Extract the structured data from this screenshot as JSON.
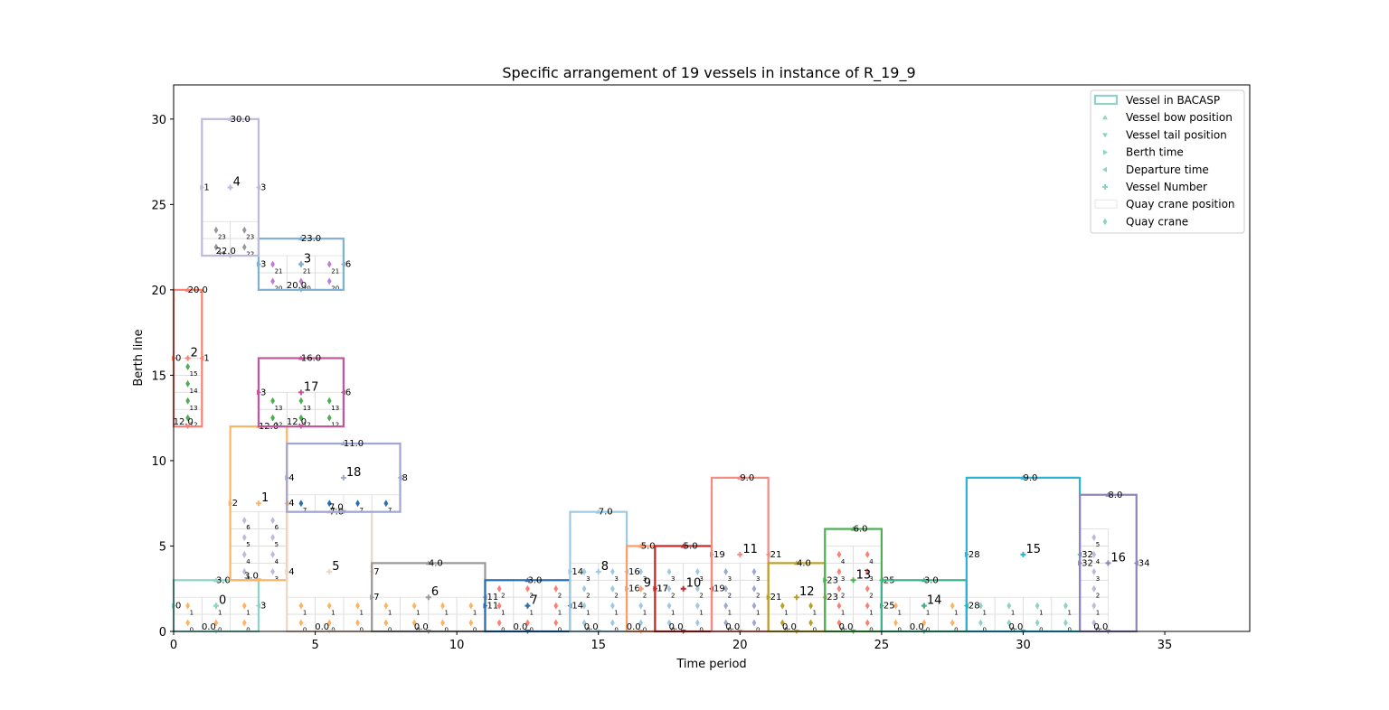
{
  "chart_data": {
    "type": "berth-allocation",
    "title": "Specific arrangement of 19 vessels in instance of R_19_9",
    "xlabel": "Time period",
    "ylabel": "Berth line",
    "xlim": [
      0,
      38
    ],
    "ylim": [
      0,
      32
    ],
    "xticks": [
      0,
      5,
      10,
      15,
      20,
      25,
      30,
      35
    ],
    "yticks": [
      0,
      5,
      10,
      15,
      20,
      25,
      30
    ],
    "legend_position": "upper-right",
    "legend": [
      {
        "label": "Vessel in BACASP",
        "marker": "rect"
      },
      {
        "label": "Vessel bow position",
        "marker": "triangle-up"
      },
      {
        "label": "Vessel tail position",
        "marker": "triangle-down"
      },
      {
        "label": "Berth time",
        "marker": "triangle-right"
      },
      {
        "label": "Departure time",
        "marker": "triangle-left"
      },
      {
        "label": "Vessel Number",
        "marker": "plus"
      },
      {
        "label": "Quay crane position",
        "marker": "grid"
      },
      {
        "label": "Quay crane",
        "marker": "diamond"
      }
    ],
    "vessels": [
      {
        "id": "0",
        "t1": 0,
        "t2": 3,
        "b1": 0,
        "b2": 3,
        "color": "#8dd3c7",
        "bow": "3.0",
        "tail": "0.0",
        "start": "0",
        "end": "3"
      },
      {
        "id": "1",
        "t1": 2,
        "t2": 4,
        "b1": 3,
        "b2": 12,
        "color": "#fdb462",
        "bow": "12.0",
        "tail": "3.0",
        "start": "2",
        "end": "4"
      },
      {
        "id": "2",
        "t1": 0,
        "t2": 1,
        "b1": 12,
        "b2": 20,
        "color": "#fb8072",
        "bow": "20.0",
        "tail": "12.0",
        "start": "0",
        "end": "1"
      },
      {
        "id": "3",
        "t1": 3,
        "t2": 6,
        "b1": 20,
        "b2": 23,
        "color": "#80b1d3",
        "bow": "23.0",
        "tail": "20.0",
        "start": "3",
        "end": "6"
      },
      {
        "id": "4",
        "t1": 1,
        "t2": 3,
        "b1": 22,
        "b2": 30,
        "color": "#bebada",
        "bow": "30.0",
        "tail": "22.0",
        "start": "1",
        "end": "3"
      },
      {
        "id": "5",
        "t1": 4,
        "t2": 7,
        "b1": 0,
        "b2": 7,
        "color": "#ead6c8",
        "bow": "7.0",
        "tail": "0.0",
        "start": "4",
        "end": "7"
      },
      {
        "id": "6",
        "t1": 7,
        "t2": 11,
        "b1": 0,
        "b2": 4,
        "color": "#999999",
        "bow": "4.0",
        "tail": "0.0",
        "start": "7",
        "end": "11"
      },
      {
        "id": "7",
        "t1": 11,
        "t2": 14,
        "b1": 0,
        "b2": 3,
        "color": "#2a6fb0",
        "bow": "3.0",
        "tail": "0.0",
        "start": "11",
        "end": "14"
      },
      {
        "id": "8",
        "t1": 14,
        "t2": 16,
        "b1": 0,
        "b2": 7,
        "color": "#9ecae1",
        "bow": "7.0",
        "tail": "0.0",
        "start": "14",
        "end": "16"
      },
      {
        "id": "9",
        "t1": 16,
        "t2": 17,
        "b1": 0,
        "b2": 5,
        "color": "#fc9d6a",
        "bow": "5.0",
        "tail": "0.0",
        "start": "16",
        "end": "17"
      },
      {
        "id": "10",
        "t1": 17,
        "t2": 19,
        "b1": 0,
        "b2": 5,
        "color": "#c62828",
        "bow": "5.0",
        "tail": "0.0",
        "start": "17",
        "end": "19"
      },
      {
        "id": "11",
        "t1": 19,
        "t2": 21,
        "b1": 0,
        "b2": 9,
        "color": "#f28b82",
        "bow": "9.0",
        "tail": "0.0",
        "start": "19",
        "end": "21"
      },
      {
        "id": "12",
        "t1": 21,
        "t2": 23,
        "b1": 0,
        "b2": 4,
        "color": "#b8a128",
        "bow": "4.0",
        "tail": "0.0",
        "start": "21",
        "end": "23"
      },
      {
        "id": "13",
        "t1": 23,
        "t2": 25,
        "b1": 0,
        "b2": 6,
        "color": "#4caf50",
        "bow": "6.0",
        "tail": "0.0",
        "start": "23",
        "end": "25"
      },
      {
        "id": "14",
        "t1": 25,
        "t2": 28,
        "b1": 0,
        "b2": 3,
        "color": "#3cb38a",
        "bow": "3.0",
        "tail": "0.0",
        "start": "25",
        "end": "28"
      },
      {
        "id": "15",
        "t1": 28,
        "t2": 32,
        "b1": 0,
        "b2": 9,
        "color": "#26b5d6",
        "bow": "9.0",
        "tail": "0.0",
        "start": "28",
        "end": "32"
      },
      {
        "id": "16",
        "t1": 32,
        "t2": 34,
        "b1": 0,
        "b2": 8,
        "color": "#8e84bd",
        "bow": "8.0",
        "tail": "0.0",
        "start": "32",
        "end": "34"
      },
      {
        "id": "17",
        "t1": 3,
        "t2": 6,
        "b1": 12,
        "b2": 16,
        "color": "#c2569a",
        "bow": "16.0",
        "tail": "12.0",
        "start": "3",
        "end": "6"
      },
      {
        "id": "18",
        "t1": 4,
        "t2": 8,
        "b1": 7,
        "b2": 11,
        "color": "#9fa6cf",
        "bow": "11.0",
        "tail": "7.0",
        "start": "4",
        "end": "8"
      }
    ],
    "crane_cells": [
      {
        "t1": 0,
        "t2": 3,
        "b1": 0,
        "b2": 2,
        "color": "#fdb462"
      },
      {
        "t1": 1,
        "t2": 3,
        "b1": 22,
        "b2": 24,
        "color": "#999999"
      },
      {
        "t1": 3,
        "t2": 6,
        "b1": 20,
        "b2": 22,
        "color": "#c37ed8"
      },
      {
        "t1": 0,
        "t2": 1,
        "b1": 12,
        "b2": 16,
        "color": "#4caf50"
      },
      {
        "t1": 3,
        "t2": 6,
        "b1": 12,
        "b2": 14,
        "color": "#4caf50"
      },
      {
        "t1": 2,
        "t2": 4,
        "b1": 3,
        "b2": 7,
        "color": "#bebada"
      },
      {
        "t1": 4,
        "t2": 8,
        "b1": 7,
        "b2": 8,
        "color": "#2a6fb0"
      },
      {
        "t1": 4,
        "t2": 11,
        "b1": 0,
        "b2": 2,
        "color": "#fdb462"
      },
      {
        "t1": 11,
        "t2": 14,
        "b1": 0,
        "b2": 3,
        "color": "#fb8072"
      },
      {
        "t1": 14,
        "t2": 19,
        "b1": 0,
        "b2": 4,
        "color": "#9ecae1"
      },
      {
        "t1": 19,
        "t2": 21,
        "b1": 0,
        "b2": 4,
        "color": "#9fa6cf"
      },
      {
        "t1": 21,
        "t2": 23,
        "b1": 0,
        "b2": 2,
        "color": "#b8a128"
      },
      {
        "t1": 23,
        "t2": 25,
        "b1": 0,
        "b2": 5,
        "color": "#fb8072"
      },
      {
        "t1": 25,
        "t2": 28,
        "b1": 0,
        "b2": 2,
        "color": "#fdb462"
      },
      {
        "t1": 28,
        "t2": 32,
        "b1": 0,
        "b2": 2,
        "color": "#8dd3c7"
      },
      {
        "t1": 32,
        "t2": 33,
        "b1": 0,
        "b2": 6,
        "color": "#bebada"
      }
    ]
  }
}
